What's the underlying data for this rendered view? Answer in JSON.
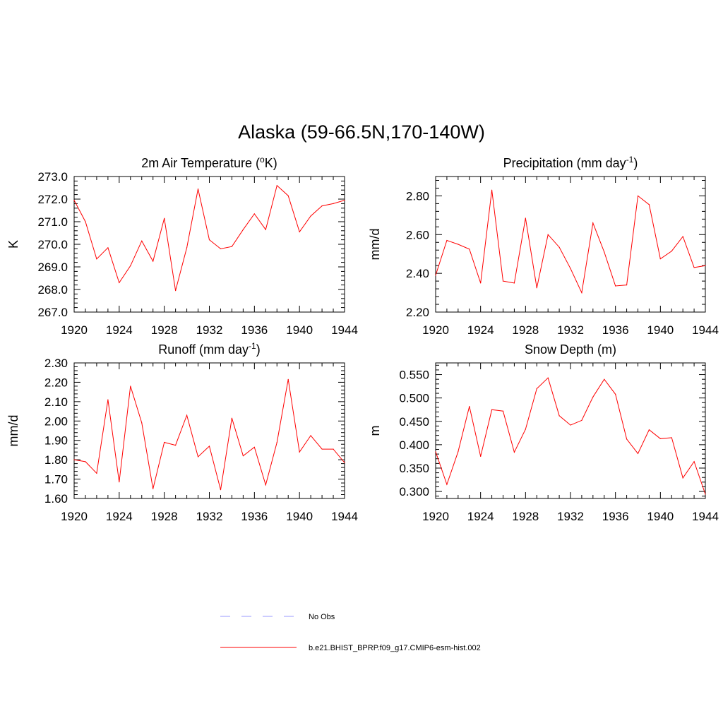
{
  "title": "Alaska (59-66.5N,170-140W)",
  "chart_data": [
    {
      "type": "line",
      "title": "2m Air Temperature (",
      "title_sup": "o",
      "title_after": "K)",
      "ylabel": "K",
      "x": [
        1920,
        1921,
        1922,
        1923,
        1924,
        1925,
        1926,
        1927,
        1928,
        1929,
        1930,
        1931,
        1932,
        1933,
        1934,
        1935,
        1936,
        1937,
        1938,
        1939,
        1940,
        1941,
        1942,
        1943,
        1944
      ],
      "xlim": [
        1920,
        1944
      ],
      "xticks": [
        "1920",
        "1924",
        "1928",
        "1932",
        "1936",
        "1940",
        "1944"
      ],
      "ylim": [
        267.0,
        273.0
      ],
      "yticks": [
        "267.0",
        "268.0",
        "269.0",
        "270.0",
        "271.0",
        "272.0",
        "273.0"
      ],
      "series": [
        {
          "values": [
            271.95,
            271.0,
            269.35,
            269.85,
            268.3,
            269.05,
            270.15,
            269.25,
            271.15,
            267.95,
            269.85,
            272.45,
            270.2,
            269.8,
            269.9,
            270.65,
            271.35,
            270.65,
            272.6,
            272.15,
            270.55,
            271.25,
            271.7,
            271.8,
            271.95
          ]
        }
      ]
    },
    {
      "type": "line",
      "title": "Precipitation (mm day",
      "title_sup": "-1",
      "title_after": ")",
      "ylabel": "mm/d",
      "x": [
        1920,
        1921,
        1922,
        1923,
        1924,
        1925,
        1926,
        1927,
        1928,
        1929,
        1930,
        1931,
        1932,
        1933,
        1934,
        1935,
        1936,
        1937,
        1938,
        1939,
        1940,
        1941,
        1942,
        1943,
        1944
      ],
      "xlim": [
        1920,
        1944
      ],
      "xticks": [
        "1920",
        "1924",
        "1928",
        "1932",
        "1936",
        "1940",
        "1944"
      ],
      "ylim": [
        2.2,
        2.9
      ],
      "yticks": [
        "2.20",
        "2.40",
        "2.60",
        "2.80"
      ],
      "series": [
        {
          "values": [
            2.39,
            2.57,
            2.55,
            2.525,
            2.35,
            2.83,
            2.36,
            2.35,
            2.685,
            2.325,
            2.6,
            2.535,
            2.425,
            2.3,
            2.66,
            2.51,
            2.335,
            2.34,
            2.8,
            2.755,
            2.475,
            2.515,
            2.59,
            2.43,
            2.44
          ]
        }
      ]
    },
    {
      "type": "line",
      "title": "Runoff (mm day",
      "title_sup": "-1",
      "title_after": ")",
      "ylabel": "mm/d",
      "x": [
        1920,
        1921,
        1922,
        1923,
        1924,
        1925,
        1926,
        1927,
        1928,
        1929,
        1930,
        1931,
        1932,
        1933,
        1934,
        1935,
        1936,
        1937,
        1938,
        1939,
        1940,
        1941,
        1942,
        1943,
        1944
      ],
      "xlim": [
        1920,
        1944
      ],
      "xticks": [
        "1920",
        "1924",
        "1928",
        "1932",
        "1936",
        "1940",
        "1944"
      ],
      "ylim": [
        1.6,
        2.3
      ],
      "yticks": [
        "1.60",
        "1.70",
        "1.80",
        "1.90",
        "2.00",
        "2.10",
        "2.20",
        "2.30"
      ],
      "series": [
        {
          "values": [
            1.8,
            1.79,
            1.73,
            2.11,
            1.685,
            2.18,
            1.99,
            1.65,
            1.89,
            1.875,
            2.03,
            1.815,
            1.87,
            1.645,
            2.015,
            1.82,
            1.865,
            1.67,
            1.89,
            2.215,
            1.84,
            1.925,
            1.855,
            1.855,
            1.785
          ]
        }
      ]
    },
    {
      "type": "line",
      "title": "Snow Depth (m)",
      "title_sup": "",
      "title_after": "",
      "ylabel": "m",
      "x": [
        1920,
        1921,
        1922,
        1923,
        1924,
        1925,
        1926,
        1927,
        1928,
        1929,
        1930,
        1931,
        1932,
        1933,
        1934,
        1935,
        1936,
        1937,
        1938,
        1939,
        1940,
        1941,
        1942,
        1943,
        1944
      ],
      "xlim": [
        1920,
        1944
      ],
      "xticks": [
        "1920",
        "1924",
        "1928",
        "1932",
        "1936",
        "1940",
        "1944"
      ],
      "ylim": [
        0.285,
        0.575
      ],
      "yticks": [
        "0.300",
        "0.350",
        "0.400",
        "0.450",
        "0.500",
        "0.550"
      ],
      "series": [
        {
          "values": [
            0.385,
            0.315,
            0.385,
            0.482,
            0.375,
            0.475,
            0.472,
            0.384,
            0.433,
            0.52,
            0.543,
            0.462,
            0.442,
            0.452,
            0.502,
            0.54,
            0.508,
            0.412,
            0.381,
            0.432,
            0.413,
            0.415,
            0.329,
            0.364,
            0.294
          ]
        }
      ]
    }
  ],
  "legend": [
    {
      "label": "No Obs",
      "color": "#9999ff",
      "dash": "dashed"
    },
    {
      "label": "b.e21.BHIST_BPRP.f09_g17.CMIP6-esm-hist.002",
      "color": "#ff0000",
      "dash": "solid"
    }
  ],
  "colors": {
    "series": "#ff0000",
    "axes": "#000000"
  }
}
